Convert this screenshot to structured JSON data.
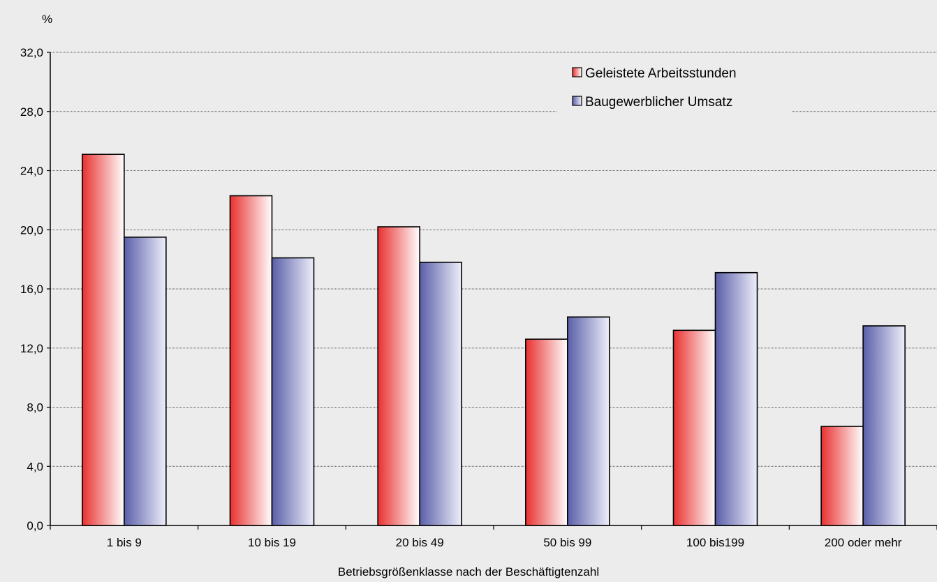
{
  "chart_data": {
    "type": "bar",
    "categories": [
      "1 bis 9",
      "10 bis 19",
      "20 bis 49",
      "50 bis 99",
      "100 bis199",
      "200 oder mehr"
    ],
    "series": [
      {
        "name": "Geleistete Arbeitsstunden",
        "values": [
          25.1,
          22.3,
          20.2,
          12.6,
          13.2,
          6.7
        ],
        "color_from": "#e8312f",
        "color_to": "#ffffff"
      },
      {
        "name": "Baugewerblicher Umsatz",
        "values": [
          19.5,
          18.1,
          17.8,
          14.1,
          17.1,
          13.5
        ],
        "color_from": "#5a5fa8",
        "color_to": "#eeeefa"
      }
    ],
    "title": "",
    "xlabel": "Betriebsgrößenklasse nach der Beschäftigtenzahl",
    "ylabel": "%",
    "ylim": [
      0,
      32
    ],
    "yticks": [
      "0,0",
      "4,0",
      "8,0",
      "12,0",
      "16,0",
      "20,0",
      "24,0",
      "28,0",
      "32,0"
    ],
    "grid": true,
    "legend_position": "top-right"
  }
}
